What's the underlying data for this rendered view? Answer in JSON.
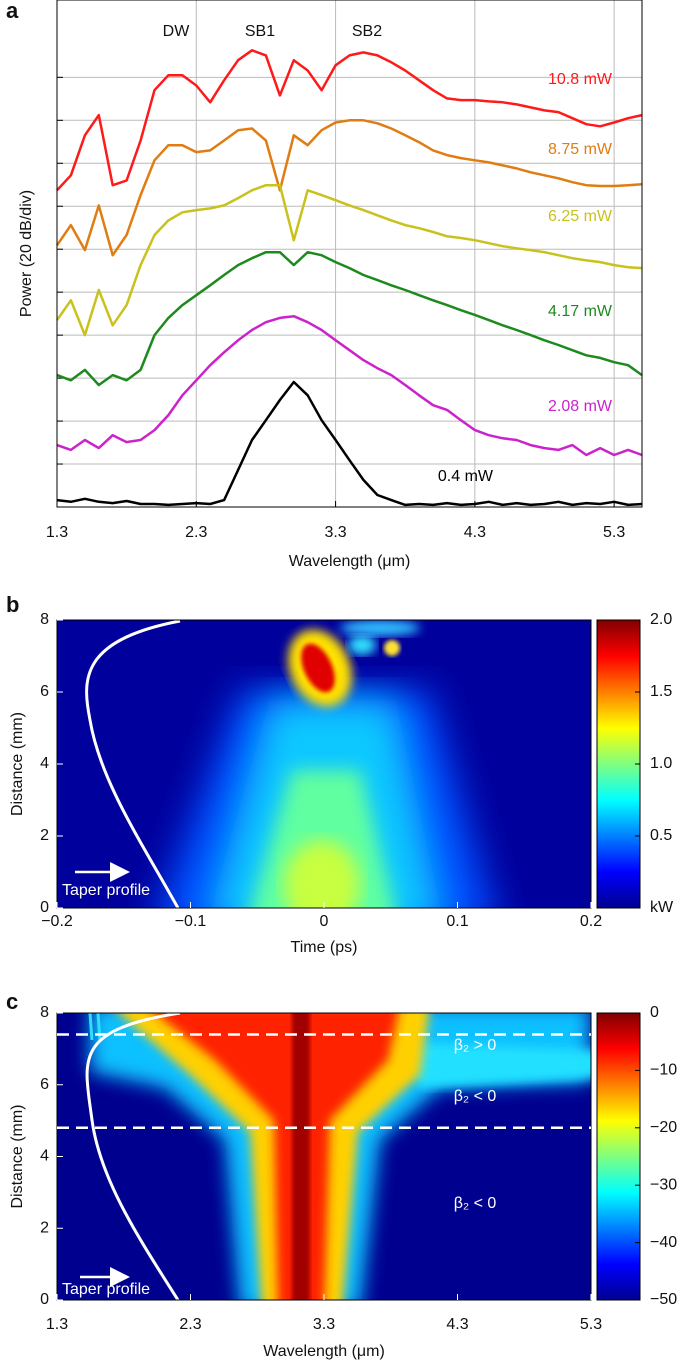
{
  "chart_data": [
    {
      "type": "line",
      "panel": "a",
      "ylabel": "Power (20 dB/div)",
      "xlabel": "Wavelength (μm)",
      "annotations": [
        "DW",
        "SB1",
        "SB2"
      ],
      "xlim": [
        1.3,
        5.5
      ],
      "xticks": [
        1.3,
        2.3,
        3.3,
        4.3,
        5.3
      ],
      "ylim": [
        0,
        11.8
      ],
      "yticks": [
        1,
        2,
        3,
        4,
        5,
        6,
        7,
        8,
        9,
        10
      ],
      "grid": true,
      "x": [
        1.3,
        1.4,
        1.5,
        1.6,
        1.7,
        1.8,
        1.9,
        2.0,
        2.1,
        2.2,
        2.3,
        2.4,
        2.5,
        2.6,
        2.7,
        2.8,
        2.9,
        3.0,
        3.1,
        3.2,
        3.3,
        3.4,
        3.5,
        3.6,
        3.7,
        3.8,
        3.9,
        4.0,
        4.1,
        4.2,
        4.3,
        4.4,
        4.5,
        4.6,
        4.7,
        4.8,
        4.9,
        5.0,
        5.1,
        5.2,
        5.3,
        5.4,
        5.5
      ],
      "series": [
        {
          "name": "10.8 mW",
          "color": "#ff1a1a",
          "values": [
            7.37,
            7.72,
            8.65,
            9.12,
            7.49,
            7.6,
            8.53,
            9.7,
            10.05,
            10.05,
            9.81,
            9.42,
            9.93,
            10.4,
            10.63,
            10.51,
            9.58,
            10.4,
            10.16,
            9.7,
            10.28,
            10.51,
            10.58,
            10.51,
            10.35,
            10.16,
            9.93,
            9.7,
            9.51,
            9.47,
            9.47,
            9.44,
            9.42,
            9.37,
            9.3,
            9.23,
            9.19,
            9.05,
            8.91,
            8.86,
            8.95,
            9.05,
            9.12
          ]
        },
        {
          "name": "8.75 mW",
          "color": "#e07c12",
          "values": [
            6.09,
            6.56,
            5.98,
            7.02,
            5.86,
            6.33,
            7.26,
            8.07,
            8.42,
            8.42,
            8.26,
            8.3,
            8.53,
            8.77,
            8.81,
            8.53,
            7.37,
            8.65,
            8.42,
            8.77,
            8.95,
            9.0,
            9.0,
            8.93,
            8.81,
            8.65,
            8.49,
            8.3,
            8.19,
            8.12,
            8.07,
            8.02,
            7.95,
            7.88,
            7.79,
            7.72,
            7.65,
            7.56,
            7.49,
            7.47,
            7.47,
            7.49,
            7.51
          ]
        },
        {
          "name": "6.25 mW",
          "color": "#c9c11c",
          "values": [
            4.35,
            4.81,
            4.0,
            5.05,
            4.23,
            4.7,
            5.63,
            6.33,
            6.67,
            6.86,
            6.91,
            6.95,
            7.02,
            7.19,
            7.37,
            7.49,
            7.49,
            6.21,
            7.37,
            7.26,
            7.14,
            7.02,
            6.91,
            6.79,
            6.67,
            6.56,
            6.49,
            6.4,
            6.3,
            6.26,
            6.21,
            6.14,
            6.07,
            6.02,
            5.98,
            5.93,
            5.86,
            5.79,
            5.74,
            5.7,
            5.63,
            5.58,
            5.56
          ]
        },
        {
          "name": "4.17 mW",
          "color": "#1e8a1e",
          "values": [
            3.07,
            2.95,
            3.19,
            2.84,
            3.07,
            2.95,
            3.19,
            4.0,
            4.4,
            4.7,
            4.93,
            5.16,
            5.4,
            5.63,
            5.79,
            5.93,
            5.93,
            5.63,
            5.93,
            5.86,
            5.7,
            5.56,
            5.4,
            5.28,
            5.16,
            5.05,
            4.93,
            4.81,
            4.7,
            4.58,
            4.47,
            4.35,
            4.23,
            4.12,
            4.0,
            3.88,
            3.77,
            3.65,
            3.53,
            3.47,
            3.37,
            3.3,
            3.07
          ]
        },
        {
          "name": "2.08 mW",
          "color": "#cc22cc",
          "values": [
            1.44,
            1.33,
            1.56,
            1.37,
            1.67,
            1.51,
            1.56,
            1.79,
            2.14,
            2.6,
            2.95,
            3.3,
            3.6,
            3.88,
            4.12,
            4.3,
            4.4,
            4.44,
            4.3,
            4.12,
            3.88,
            3.65,
            3.42,
            3.23,
            3.07,
            2.84,
            2.6,
            2.37,
            2.26,
            2.02,
            1.79,
            1.67,
            1.6,
            1.56,
            1.44,
            1.37,
            1.33,
            1.44,
            1.21,
            1.37,
            1.21,
            1.33,
            1.21
          ]
        },
        {
          "name": "0.4 mW",
          "color": "#000000",
          "values": [
            0.16,
            0.12,
            0.19,
            0.12,
            0.09,
            0.14,
            0.07,
            0.07,
            0.05,
            0.07,
            0.09,
            0.07,
            0.16,
            0.86,
            1.56,
            2.02,
            2.49,
            2.91,
            2.6,
            2.02,
            1.56,
            1.09,
            0.63,
            0.28,
            0.16,
            0.05,
            0.07,
            0.05,
            0.09,
            0.05,
            0.07,
            0.12,
            0.05,
            0.09,
            0.05,
            0.07,
            0.12,
            0.05,
            0.09,
            0.07,
            0.12,
            0.05,
            0.07
          ]
        }
      ]
    },
    {
      "type": "heatmap",
      "panel": "b",
      "ylabel": "Distance (mm)",
      "xlabel": "Time (ps)",
      "annotations": [
        "Taper profile"
      ],
      "xlim": [
        -0.2,
        0.2
      ],
      "xticks": [
        {
          "value": -0.2,
          "label": "−0.2"
        },
        {
          "value": -0.1,
          "label": "−0.1"
        },
        0,
        0.1,
        0.2
      ],
      "ylim": [
        0,
        8
      ],
      "yticks": [
        0,
        2,
        4,
        6,
        8
      ],
      "colorbar_lim": [
        0,
        2
      ],
      "colorbar_ticks": [
        0.5,
        {
          "value": 1,
          "label": "1.0"
        },
        1.5,
        {
          "value": 2,
          "label": "2.0"
        }
      ],
      "colorbar_label": "kW"
    },
    {
      "type": "heatmap",
      "panel": "c",
      "ylabel": "Distance (mm)",
      "xlabel": "Wavelength (μm)",
      "annotations": [
        "Taper profile",
        "β₂ > 0",
        "β₂ < 0",
        "β₂ < 0"
      ],
      "xlim": [
        1.3,
        5.3
      ],
      "xticks": [
        1.3,
        2.3,
        3.3,
        4.3,
        5.3
      ],
      "ylim": [
        0,
        8
      ],
      "yticks": [
        0,
        2,
        4,
        6,
        8
      ],
      "hlines": [
        7.4,
        4.8
      ],
      "colorbar_lim": [
        -50,
        0
      ],
      "colorbar_ticks": [
        0,
        {
          "value": -10,
          "label": "−10"
        },
        {
          "value": -20,
          "label": "−20"
        },
        {
          "value": -30,
          "label": "−30"
        },
        {
          "value": -40,
          "label": "−40"
        },
        {
          "value": -50,
          "label": "−50"
        }
      ]
    }
  ]
}
